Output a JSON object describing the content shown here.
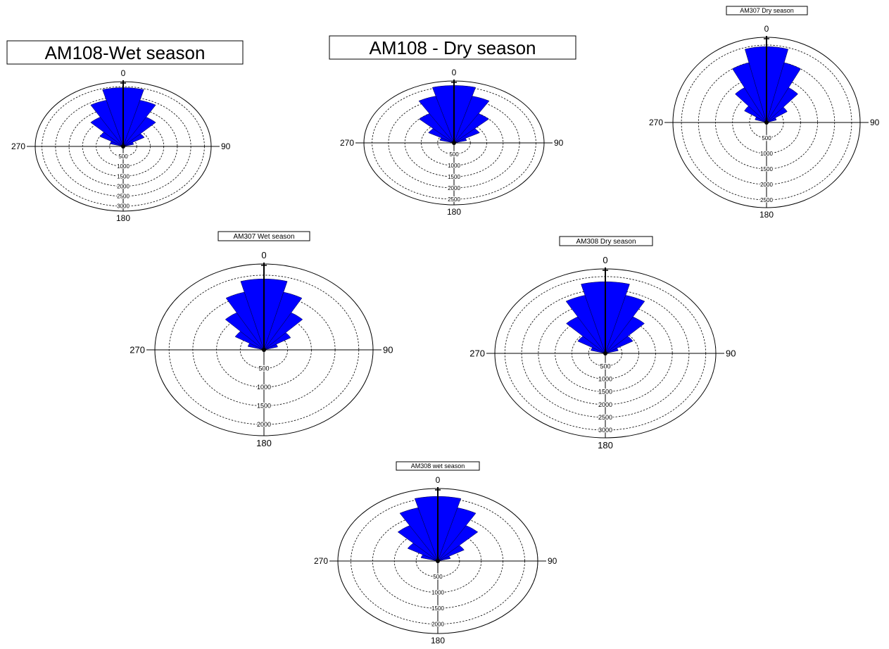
{
  "chart_data": [
    {
      "type": "rose",
      "title": "AM108-Wet season",
      "compass": [
        "0",
        "90",
        "180",
        "270"
      ],
      "radial_ticks": [
        500,
        1000,
        1500,
        2000,
        2500,
        3000
      ],
      "rmax": 3250,
      "sector_deg": 15,
      "sectors": [
        {
          "dir": 292.5,
          "value": 500
        },
        {
          "dir": 307.5,
          "value": 1000
        },
        {
          "dir": 322.5,
          "value": 1700
        },
        {
          "dir": 337.5,
          "value": 2400
        },
        {
          "dir": 352.5,
          "value": 2950
        },
        {
          "dir": 7.5,
          "value": 2950
        },
        {
          "dir": 22.5,
          "value": 2400
        },
        {
          "dir": 37.5,
          "value": 1700
        },
        {
          "dir": 52.5,
          "value": 900
        },
        {
          "dir": 67.5,
          "value": 400
        }
      ]
    },
    {
      "type": "rose",
      "title": "AM108 - Dry season",
      "compass": [
        "0",
        "90",
        "180",
        "270"
      ],
      "radial_ticks": [
        500,
        1000,
        1500,
        2000,
        2500
      ],
      "rmax": 2750,
      "sector_deg": 15,
      "sectors": [
        {
          "dir": 292.5,
          "value": 450
        },
        {
          "dir": 307.5,
          "value": 900
        },
        {
          "dir": 322.5,
          "value": 1500
        },
        {
          "dir": 337.5,
          "value": 2150
        },
        {
          "dir": 352.5,
          "value": 2550
        },
        {
          "dir": 7.5,
          "value": 2550
        },
        {
          "dir": 22.5,
          "value": 2150
        },
        {
          "dir": 37.5,
          "value": 1500
        },
        {
          "dir": 52.5,
          "value": 900
        },
        {
          "dir": 67.5,
          "value": 400
        }
      ]
    },
    {
      "type": "rose",
      "title": "AM307 Dry season",
      "compass": [
        "0",
        "90",
        "180",
        "270"
      ],
      "radial_ticks": [
        500,
        1000,
        1500,
        2000,
        2500
      ],
      "rmax": 2750,
      "sector_deg": 15,
      "sectors": [
        {
          "dir": 292.5,
          "value": 350
        },
        {
          "dir": 307.5,
          "value": 750
        },
        {
          "dir": 322.5,
          "value": 1300
        },
        {
          "dir": 337.5,
          "value": 2000
        },
        {
          "dir": 352.5,
          "value": 2450
        },
        {
          "dir": 7.5,
          "value": 2450
        },
        {
          "dir": 22.5,
          "value": 2000
        },
        {
          "dir": 37.5,
          "value": 1300
        },
        {
          "dir": 52.5,
          "value": 700
        },
        {
          "dir": 67.5,
          "value": 300
        }
      ]
    },
    {
      "type": "rose",
      "title": "AM307 Wet season",
      "compass": [
        "0",
        "90",
        "180",
        "270"
      ],
      "radial_ticks": [
        500,
        1000,
        1500,
        2000
      ],
      "rmax": 2300,
      "sector_deg": 15,
      "sectors": [
        {
          "dir": 292.5,
          "value": 350
        },
        {
          "dir": 307.5,
          "value": 700
        },
        {
          "dir": 322.5,
          "value": 1150
        },
        {
          "dir": 337.5,
          "value": 1600
        },
        {
          "dir": 352.5,
          "value": 1900
        },
        {
          "dir": 7.5,
          "value": 1900
        },
        {
          "dir": 22.5,
          "value": 1600
        },
        {
          "dir": 37.5,
          "value": 1150
        },
        {
          "dir": 52.5,
          "value": 650
        },
        {
          "dir": 67.5,
          "value": 300
        }
      ]
    },
    {
      "type": "rose",
      "title": "AM308 Dry season",
      "compass": [
        "0",
        "90",
        "180",
        "270"
      ],
      "radial_ticks": [
        500,
        1000,
        1500,
        2000,
        2500,
        3000
      ],
      "rmax": 3300,
      "sector_deg": 15,
      "sectors": [
        {
          "dir": 292.5,
          "value": 450
        },
        {
          "dir": 307.5,
          "value": 950
        },
        {
          "dir": 322.5,
          "value": 1650
        },
        {
          "dir": 337.5,
          "value": 2350
        },
        {
          "dir": 352.5,
          "value": 2800
        },
        {
          "dir": 7.5,
          "value": 2800
        },
        {
          "dir": 22.5,
          "value": 2350
        },
        {
          "dir": 37.5,
          "value": 1650
        },
        {
          "dir": 52.5,
          "value": 950
        },
        {
          "dir": 67.5,
          "value": 400
        }
      ]
    },
    {
      "type": "rose",
      "title": "AM308 wet season",
      "compass": [
        "0",
        "90",
        "180",
        "270"
      ],
      "radial_ticks": [
        500,
        1000,
        1500,
        2000
      ],
      "rmax": 2300,
      "sector_deg": 15,
      "sectors": [
        {
          "dir": 292.5,
          "value": 400
        },
        {
          "dir": 307.5,
          "value": 800
        },
        {
          "dir": 322.5,
          "value": 1300
        },
        {
          "dir": 337.5,
          "value": 1750
        },
        {
          "dir": 352.5,
          "value": 2050
        },
        {
          "dir": 7.5,
          "value": 2050
        },
        {
          "dir": 22.5,
          "value": 1750
        },
        {
          "dir": 37.5,
          "value": 1300
        },
        {
          "dir": 52.5,
          "value": 700
        },
        {
          "dir": 67.5,
          "value": 300
        }
      ]
    }
  ],
  "colors": {
    "petal": "#0000ff",
    "ring": "#000000"
  }
}
